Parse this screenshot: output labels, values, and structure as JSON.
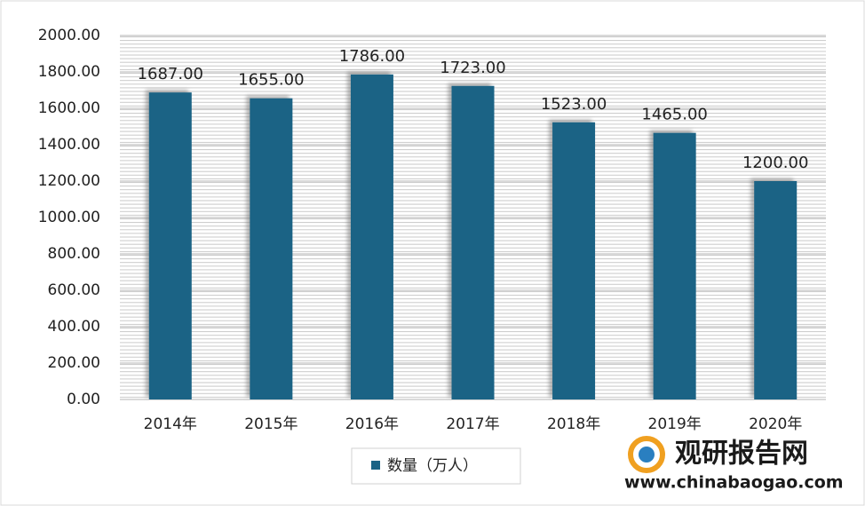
{
  "chart_data": {
    "type": "bar",
    "categories": [
      "2014年",
      "2015年",
      "2016年",
      "2017年",
      "2018年",
      "2019年",
      "2020年"
    ],
    "series": [
      {
        "name": "数量（万人）",
        "color": "#1b6385",
        "values": [
          1687,
          1655,
          1786,
          1723,
          1523,
          1465,
          1200
        ],
        "value_labels": [
          "1687.00",
          "1655.00",
          "1786.00",
          "1723.00",
          "1523.00",
          "1465.00",
          "1200.00"
        ]
      }
    ],
    "ylim": [
      0,
      2000
    ],
    "yticks": [
      {
        "value": 0,
        "label": "0.00"
      },
      {
        "value": 200,
        "label": "200.00"
      },
      {
        "value": 400,
        "label": "400.00"
      },
      {
        "value": 600,
        "label": "600.00"
      },
      {
        "value": 800,
        "label": "800.00"
      },
      {
        "value": 1000,
        "label": "1000.00"
      },
      {
        "value": 1200,
        "label": "1200.00"
      },
      {
        "value": 1400,
        "label": "1400.00"
      },
      {
        "value": 1600,
        "label": "1600.00"
      },
      {
        "value": 1800,
        "label": "1800.00"
      },
      {
        "value": 2000,
        "label": "2000.00"
      }
    ],
    "grid": true,
    "legend": "bottom"
  },
  "watermark": {
    "name": "观研报告网",
    "url": "www.chinabaogao.com"
  }
}
